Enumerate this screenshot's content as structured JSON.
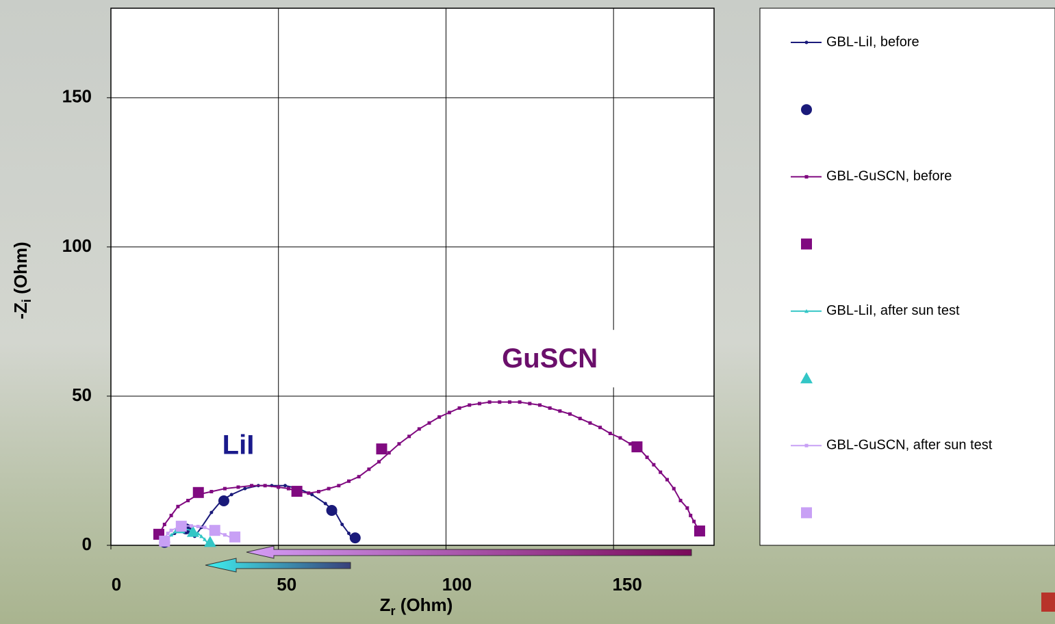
{
  "chart_data": {
    "type": "scatter",
    "x_label": {
      "main": "Z",
      "sub": "r",
      "rest": " (Ohm)"
    },
    "y_label": {
      "main": "-Z",
      "sub": "i",
      "rest": " (Ohm)"
    },
    "xlim": [
      0,
      180
    ],
    "ylim": [
      0,
      180
    ],
    "xticks": [
      0,
      50,
      100,
      150
    ],
    "yticks": [
      0,
      50,
      100,
      150
    ],
    "grid": true,
    "annotations": [
      {
        "text": "LiI",
        "x": 38,
        "y": 33,
        "color": "#1a1a8c"
      },
      {
        "text": "GuSCN",
        "x": 131,
        "y": 62,
        "color": "#6b0f6b"
      }
    ],
    "series": [
      {
        "name": "GBL-LiI, before",
        "color": "#1a1a7a",
        "marker": "dot",
        "x": [
          16,
          19,
          22,
          25,
          27,
          30,
          33,
          36,
          40,
          44,
          48,
          52,
          56,
          60,
          64,
          67,
          69,
          71,
          72
        ],
        "values": [
          2,
          4,
          5.5,
          3,
          6,
          11,
          15,
          17,
          19,
          20,
          20,
          20,
          19,
          17,
          14,
          11,
          7,
          4,
          2
        ]
      },
      {
        "color": "#1a1a7a",
        "marker": "circle",
        "x": [
          16,
          22.4,
          33.7,
          65.9,
          72.9
        ],
        "values": [
          1,
          5.5,
          14.9,
          11.7,
          2.5
        ]
      },
      {
        "name": "GBL-GuSCN, before",
        "color": "#800a80",
        "marker": "smallsquare",
        "x": [
          14,
          16,
          18,
          20,
          23,
          26,
          30,
          34,
          38,
          42,
          46,
          50,
          53,
          56,
          59,
          62,
          65,
          68,
          71,
          74,
          77,
          80,
          83,
          86,
          89,
          92,
          95,
          98,
          101,
          104,
          107,
          110,
          113,
          116,
          119,
          122,
          125,
          128,
          131,
          134,
          137,
          140,
          143,
          146,
          149,
          152,
          155,
          158,
          160,
          162,
          164,
          166,
          168,
          170,
          172,
          173,
          174,
          175
        ],
        "values": [
          3,
          7,
          10,
          13,
          15,
          17,
          18,
          19,
          19.5,
          20,
          20,
          19.5,
          19,
          18,
          17.5,
          18,
          19,
          20,
          21.5,
          23,
          25.5,
          28,
          31,
          34,
          36.5,
          39,
          41,
          43,
          44.5,
          46,
          47,
          47.5,
          48,
          48,
          48,
          48,
          47.5,
          47,
          46,
          45,
          44,
          42.5,
          41,
          39.5,
          37.5,
          36,
          34,
          32,
          29.5,
          27,
          24.5,
          22,
          19,
          15,
          12.5,
          10,
          8,
          6
        ]
      },
      {
        "color": "#800a80",
        "marker": "square",
        "x": [
          14.3,
          26.1,
          55.5,
          80.8,
          157,
          175.7
        ],
        "values": [
          3.7,
          17.7,
          18.1,
          32.3,
          33,
          4.8
        ]
      },
      {
        "name": "GBL-LiI, after sun test",
        "color": "#33c6c6",
        "marker": "smalltriangle",
        "x": [
          15,
          16,
          18,
          20,
          22,
          24,
          26,
          27,
          28,
          29
        ],
        "values": [
          1,
          2,
          3.5,
          5,
          5.5,
          5,
          4,
          3,
          2,
          0.5
        ]
      },
      {
        "color": "#33c6c6",
        "marker": "triangle",
        "x": [
          20.4,
          24.5,
          29.6
        ],
        "values": [
          5.7,
          4.5,
          1.1
        ]
      },
      {
        "name": "GBL-GuSCN, after sun test",
        "color": "#c8a0f5",
        "marker": "smallsquare",
        "x": [
          15,
          16,
          17,
          18,
          20,
          22,
          24,
          26,
          28,
          30,
          32,
          34,
          36
        ],
        "values": [
          1,
          2.5,
          4,
          5,
          6,
          6.5,
          6.5,
          6.3,
          6,
          5,
          4.3,
          3.5,
          2.5
        ]
      },
      {
        "color": "#c8a0f5",
        "marker": "square",
        "x": [
          16,
          21,
          31,
          37
        ],
        "values": [
          1.4,
          6.4,
          5,
          2.8
        ]
      }
    ]
  }
}
